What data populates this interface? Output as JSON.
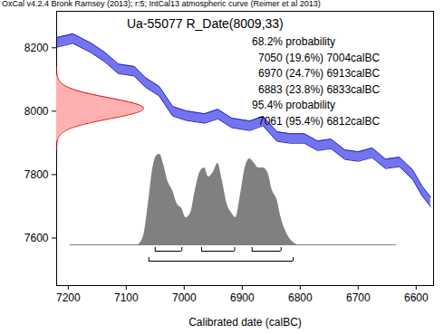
{
  "chart_data": {
    "type": "calibration",
    "header": "OxCal v4.2.4 Bronk Ramsey (2013); r:5; IntCal13 atmospheric curve (Reimer et al 2013)",
    "title": "Ua-55077 R_Date(8009,33)",
    "x_label": "Calibrated date (calBC)",
    "xlim": [
      7220,
      6570
    ],
    "xticks": [
      7200,
      7100,
      7000,
      6900,
      6800,
      6700,
      6600
    ],
    "ylim": [
      7450,
      8315
    ],
    "yticks": [
      7600,
      7800,
      8000,
      8200
    ],
    "annotations": [
      "68.2% probability",
      "7050 (19.6%) 7004calBC",
      "6970 (24.7%) 6913calBC",
      "6883 (23.8%) 6833calBC",
      "95.4% probability",
      "7061 (95.4%) 6812calBC"
    ],
    "radiocarbon_date": {
      "mean": 8009,
      "error": 33,
      "color": "#e00000",
      "fill": "#ffb0b0"
    },
    "calibration_curve": {
      "color": "#7474ee",
      "edge_color": "#2222c8",
      "x": [
        7220,
        7192,
        7161,
        7137,
        7114,
        7086,
        7067,
        7043,
        7020,
        6997,
        6965,
        6942,
        6918,
        6887,
        6864,
        6840,
        6817,
        6793,
        6770,
        6747,
        6723,
        6700,
        6676,
        6653,
        6629,
        6606,
        6590,
        6575
      ],
      "lower": [
        8202,
        8214,
        8185,
        8156,
        8119,
        8111,
        8076,
        8048,
        7985,
        7971,
        7962,
        7976,
        7948,
        7939,
        7954,
        7905,
        7899,
        7899,
        7876,
        7882,
        7848,
        7842,
        7854,
        7819,
        7825,
        7785,
        7734,
        7699
      ],
      "upper": [
        8232,
        8244,
        8215,
        8186,
        8149,
        8141,
        8106,
        8078,
        8015,
        8001,
        7992,
        8006,
        7978,
        7969,
        7984,
        7935,
        7929,
        7929,
        7906,
        7912,
        7878,
        7872,
        7884,
        7849,
        7855,
        7815,
        7764,
        7729
      ]
    },
    "posterior": {
      "color": "#808080",
      "baseline": [
        7197,
        6634
      ],
      "x": [
        7079,
        7070,
        7062,
        7054,
        7048,
        7042,
        7036,
        7028,
        7020,
        7012,
        7004,
        6997,
        6989,
        6981,
        6973,
        6965,
        6958,
        6950,
        6942,
        6934,
        6926,
        6918,
        6911,
        6903,
        6895,
        6887,
        6879,
        6872,
        6864,
        6856,
        6848,
        6840,
        6833,
        6825,
        6817,
        6805
      ],
      "density": [
        0,
        0.1,
        0.45,
        0.85,
        0.98,
        1.0,
        0.9,
        0.7,
        0.6,
        0.45,
        0.4,
        0.3,
        0.35,
        0.6,
        0.8,
        0.85,
        0.75,
        0.8,
        0.9,
        0.7,
        0.45,
        0.35,
        0.3,
        0.55,
        0.85,
        0.95,
        0.9,
        0.85,
        0.85,
        0.8,
        0.6,
        0.5,
        0.3,
        0.15,
        0.06,
        0
      ]
    },
    "ranges": [
      [
        [
          7050,
          7004
        ],
        [
          6970,
          6913
        ],
        [
          6883,
          6833
        ]
      ],
      [
        [
          7061,
          6812
        ]
      ]
    ]
  }
}
